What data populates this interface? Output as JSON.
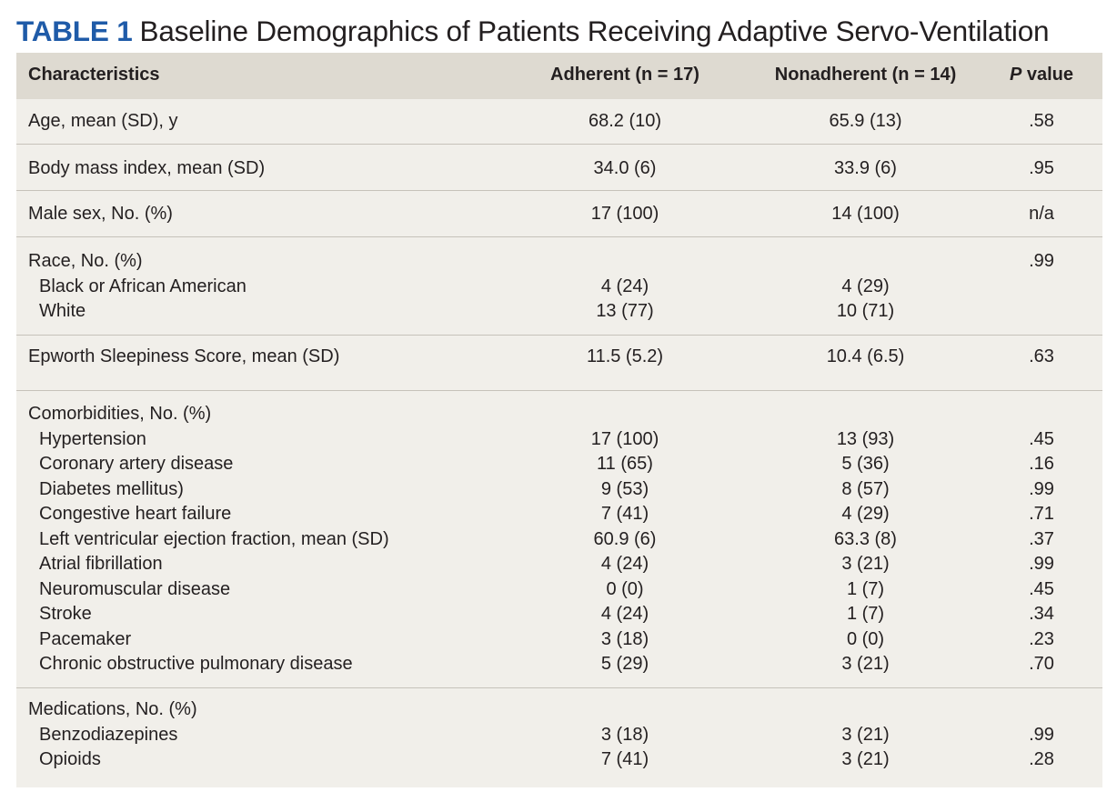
{
  "title": {
    "tag": "TABLE 1",
    "text": "Baseline Demographics of Patients Receiving Adaptive Servo-Ventilation"
  },
  "header": {
    "characteristics": "Characteristics",
    "adherent": "Adherent (n = 17)",
    "nonadherent": "Nonadherent (n = 14)",
    "p_italic": "P",
    "p_rest": " value"
  },
  "sections": [
    {
      "rows": [
        {
          "label": "Age, mean (SD), y",
          "adherent": "68.2 (10)",
          "nonadherent": "65.9 (13)",
          "p": ".58"
        }
      ]
    },
    {
      "rows": [
        {
          "label": "Body mass index, mean (SD)",
          "adherent": "34.0 (6)",
          "nonadherent": "33.9 (6)",
          "p": ".95"
        }
      ]
    },
    {
      "rows": [
        {
          "label": "Male sex, No. (%)",
          "adherent": "17 (100)",
          "nonadherent": "14 (100)",
          "p": "n/a"
        }
      ]
    },
    {
      "rows": [
        {
          "label": "Race, No. (%)",
          "adherent": "",
          "nonadherent": "",
          "p": ".99"
        },
        {
          "label": "Black or African American",
          "adherent": "4 (24)",
          "nonadherent": "4 (29)",
          "p": ""
        },
        {
          "label": "White",
          "adherent": "13 (77)",
          "nonadherent": "10 (71)",
          "p": ""
        }
      ]
    },
    {
      "rows": [
        {
          "label": "Epworth Sleepiness Score, mean (SD)",
          "adherent": "11.5 (5.2)",
          "nonadherent": "10.4 (6.5)",
          "p": ".63"
        }
      ]
    },
    {
      "rows": [
        {
          "label": "Comorbidities, No. (%)",
          "adherent": "",
          "nonadherent": "",
          "p": ""
        },
        {
          "label": "Hypertension",
          "adherent": "17 (100)",
          "nonadherent": "13 (93)",
          "p": ".45"
        },
        {
          "label": "Coronary artery disease",
          "adherent": "11 (65)",
          "nonadherent": "5 (36)",
          "p": ".16"
        },
        {
          "label": "Diabetes mellitus)",
          "adherent": "9 (53)",
          "nonadherent": "8 (57)",
          "p": ".99"
        },
        {
          "label": "Congestive heart failure",
          "adherent": "7 (41)",
          "nonadherent": "4 (29)",
          "p": ".71"
        },
        {
          "label": "Left ventricular ejection fraction, mean (SD)",
          "adherent": "60.9 (6)",
          "nonadherent": "63.3 (8)",
          "p": ".37"
        },
        {
          "label": "Atrial fibrillation",
          "adherent": "4 (24)",
          "nonadherent": "3 (21)",
          "p": ".99"
        },
        {
          "label": "Neuromuscular disease",
          "adherent": "0 (0)",
          "nonadherent": "1 (7)",
          "p": ".45"
        },
        {
          "label": "Stroke",
          "adherent": "4 (24)",
          "nonadherent": "1 (7)",
          "p": ".34"
        },
        {
          "label": "Pacemaker",
          "adherent": "3 (18)",
          "nonadherent": "0 (0)",
          "p": ".23"
        },
        {
          "label": "Chronic obstructive pulmonary disease",
          "adherent": "5 (29)",
          "nonadherent": "3 (21)",
          "p": ".70"
        }
      ]
    },
    {
      "rows": [
        {
          "label": "Medications, No. (%)",
          "adherent": "",
          "nonadherent": "",
          "p": ""
        },
        {
          "label": "Benzodiazepines",
          "adherent": "3 (18)",
          "nonadherent": "3 (21)",
          "p": ".99"
        },
        {
          "label": "Opioids",
          "adherent": "7 (41)",
          "nonadherent": "3 (21)",
          "p": ".28"
        }
      ]
    }
  ]
}
